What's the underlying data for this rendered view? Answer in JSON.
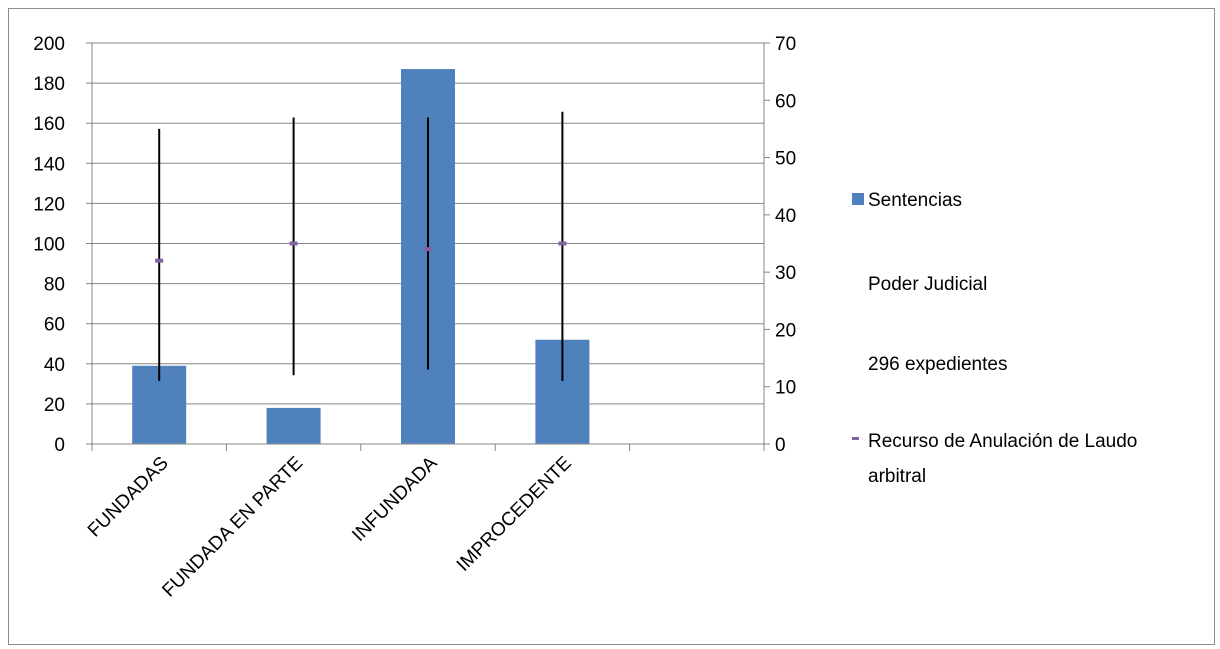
{
  "chart_data": {
    "type": "bar",
    "categories": [
      "FUNDADAS",
      "FUNDADA EN PARTE",
      "INFUNDADA",
      "IMPROCEDENTE",
      ""
    ],
    "series": [
      {
        "name": "Sentencias",
        "axis": "left",
        "kind": "bar",
        "color": "#4f81bd",
        "values": [
          39,
          18,
          187,
          52,
          null
        ]
      },
      {
        "name": "Recurso de Anulación de Laudo arbitral",
        "axis": "right",
        "kind": "high-low-close",
        "color": "#8064a2",
        "high": [
          55,
          57,
          57,
          58,
          null
        ],
        "low": [
          11,
          12,
          13,
          11,
          null
        ],
        "close": [
          32,
          35,
          34,
          35,
          null
        ]
      }
    ],
    "left_axis": {
      "ylim": [
        0,
        200
      ],
      "ticks": [
        0,
        20,
        40,
        60,
        80,
        100,
        120,
        140,
        160,
        180,
        200
      ]
    },
    "right_axis": {
      "ylim": [
        0,
        70
      ],
      "ticks": [
        0,
        10,
        20,
        30,
        40,
        50,
        60,
        70
      ]
    },
    "legend": {
      "placement": "right",
      "entries": [
        "Sentencias",
        "Poder Judicial",
        "296 expedientes",
        "Recurso de Anulación de Laudo arbitral"
      ]
    },
    "grid": true
  }
}
